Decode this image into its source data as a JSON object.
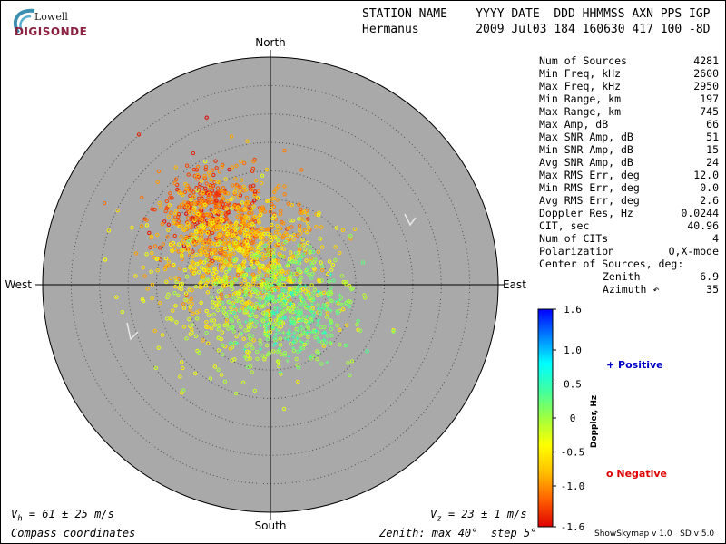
{
  "branding": {
    "logo_top": "Lowell",
    "logo_main": "DIGISONDE"
  },
  "header": {
    "labels_line": "STATION NAME    YYYY DATE  DDD HHMMSS AXN PPS IGP",
    "values_line": "Hermanus        2009 Jul03 184 160630 417 100 -8D"
  },
  "stats": [
    {
      "label": "Num of Sources",
      "value": "4281"
    },
    {
      "label": "Min Freq, kHz",
      "value": "2600"
    },
    {
      "label": "Max Freq, kHz",
      "value": "2950"
    },
    {
      "label": "Min Range, km",
      "value": "197"
    },
    {
      "label": "Max Range, km",
      "value": "745"
    },
    {
      "label": "Max Amp, dB",
      "value": "66"
    },
    {
      "label": "Max SNR Amp, dB",
      "value": "51"
    },
    {
      "label": "Min SNR Amp, dB",
      "value": "15"
    },
    {
      "label": "Avg SNR Amp, dB",
      "value": "24"
    },
    {
      "label": "Max RMS Err, deg",
      "value": "12.0"
    },
    {
      "label": "Min RMS Err, deg",
      "value": "0.0"
    },
    {
      "label": "Avg RMS Err, deg",
      "value": "2.6"
    },
    {
      "label": "Doppler Res, Hz",
      "value": "0.0244"
    },
    {
      "label": "CIT, sec",
      "value": "40.96"
    },
    {
      "label": "Num of CITs",
      "value": "4"
    },
    {
      "label": "Polarization",
      "value": "O,X-mode"
    }
  ],
  "center_of_sources": {
    "heading": "Center of Sources, deg:",
    "zenith_label": "Zenith",
    "zenith_value": "6.9",
    "azimuth_label": "Azimuth",
    "azimuth_value": "35"
  },
  "footer": {
    "vh_text": "V",
    "vh_sub": "h",
    "vh_value": " = 61 ± 25 m/s",
    "vz_text": "V",
    "vz_sub": "z",
    "vz_value": " = 23 ± 1 m/s",
    "coords": "Compass coordinates",
    "zenith": "Zenith: max 40°  step 5°",
    "credit": "ShowSkymap v 1.0   SD v 5.0"
  },
  "legend": {
    "positive": "Positive",
    "negative": "Negative"
  },
  "colors": {
    "disk": "#a9a9a9",
    "neg_color": "#e00000",
    "pos_color": "#0000c8"
  },
  "chart_data": {
    "type": "scatter",
    "projection": "polar skymap (zenith angle, azimuth)",
    "directions": {
      "north": "North",
      "south": "South",
      "east": "East",
      "west": "West"
    },
    "zenith_max_deg": 40,
    "zenith_step_deg": 5,
    "colorbar": {
      "label": "Doppler, Hz",
      "range": [
        -1.6,
        1.6
      ],
      "ticks": [
        "1.6",
        "1.0",
        "0.5",
        "0",
        "-0.5",
        "-1.0",
        "-1.6"
      ],
      "tick_values": [
        1.6,
        1.0,
        0.5,
        0,
        -0.5,
        -1.0,
        -1.6
      ],
      "scale": [
        "#e00000",
        "#ff6000",
        "#ffc000",
        "#ffff00",
        "#a0ff40",
        "#40ffa0",
        "#00ffff",
        "#0080ff",
        "#0000ff"
      ]
    },
    "clusters": [
      {
        "name": "",
        "doppler_hz": -1.35,
        "marker": "circle",
        "center_zenith_deg": 17,
        "center_azimuth_deg": 320,
        "spread_deg": 4.5,
        "count": 260
      },
      {
        "name": "",
        "doppler_hz": -1.0,
        "marker": "circle",
        "center_zenith_deg": 12,
        "center_azimuth_deg": 325,
        "spread_deg": 6,
        "count": 360
      },
      {
        "name": "",
        "doppler_hz": -0.75,
        "marker": "circle",
        "center_zenith_deg": 9,
        "center_azimuth_deg": 315,
        "spread_deg": 7,
        "count": 360
      },
      {
        "name": "",
        "doppler_hz": -0.4,
        "marker": "circle",
        "center_zenith_deg": 5,
        "center_azimuth_deg": 270,
        "spread_deg": 8,
        "count": 320
      },
      {
        "name": "",
        "doppler_hz": -0.1,
        "marker": "circle",
        "center_zenith_deg": 5,
        "center_azimuth_deg": 200,
        "spread_deg": 7,
        "count": 240
      },
      {
        "name": "",
        "doppler_hz": 0.15,
        "marker": "circle",
        "center_zenith_deg": 4,
        "center_azimuth_deg": 120,
        "spread_deg": 6,
        "count": 200
      },
      {
        "name": "",
        "doppler_hz": 0.35,
        "marker": "plus",
        "center_zenith_deg": 7,
        "center_azimuth_deg": 145,
        "spread_deg": 4,
        "count": 140
      }
    ]
  }
}
